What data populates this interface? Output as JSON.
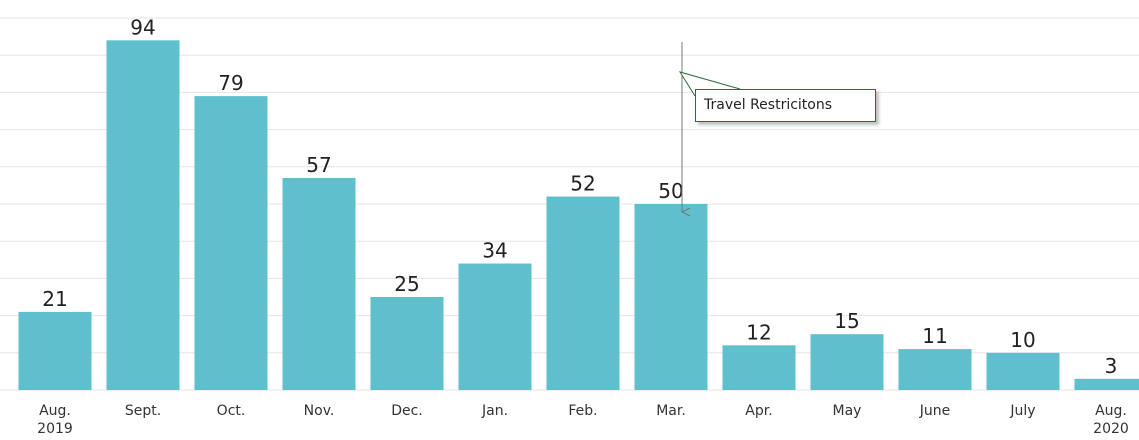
{
  "chart_data": {
    "type": "bar",
    "categories": [
      "Aug. 2019",
      "Sept.",
      "Oct.",
      "Nov.",
      "Dec.",
      "Jan.",
      "Feb.",
      "Mar.",
      "Apr.",
      "May",
      "June",
      "July",
      "Aug. 2020"
    ],
    "values": [
      21,
      94,
      79,
      57,
      25,
      34,
      52,
      50,
      12,
      15,
      11,
      10,
      3
    ],
    "color": "#5fbfcc",
    "ylim": [
      0,
      100
    ],
    "yticks": [
      0,
      10,
      20,
      30,
      40,
      50,
      60,
      70,
      80,
      90,
      100
    ],
    "grid": true,
    "annotation": "Travel Restricitons"
  }
}
